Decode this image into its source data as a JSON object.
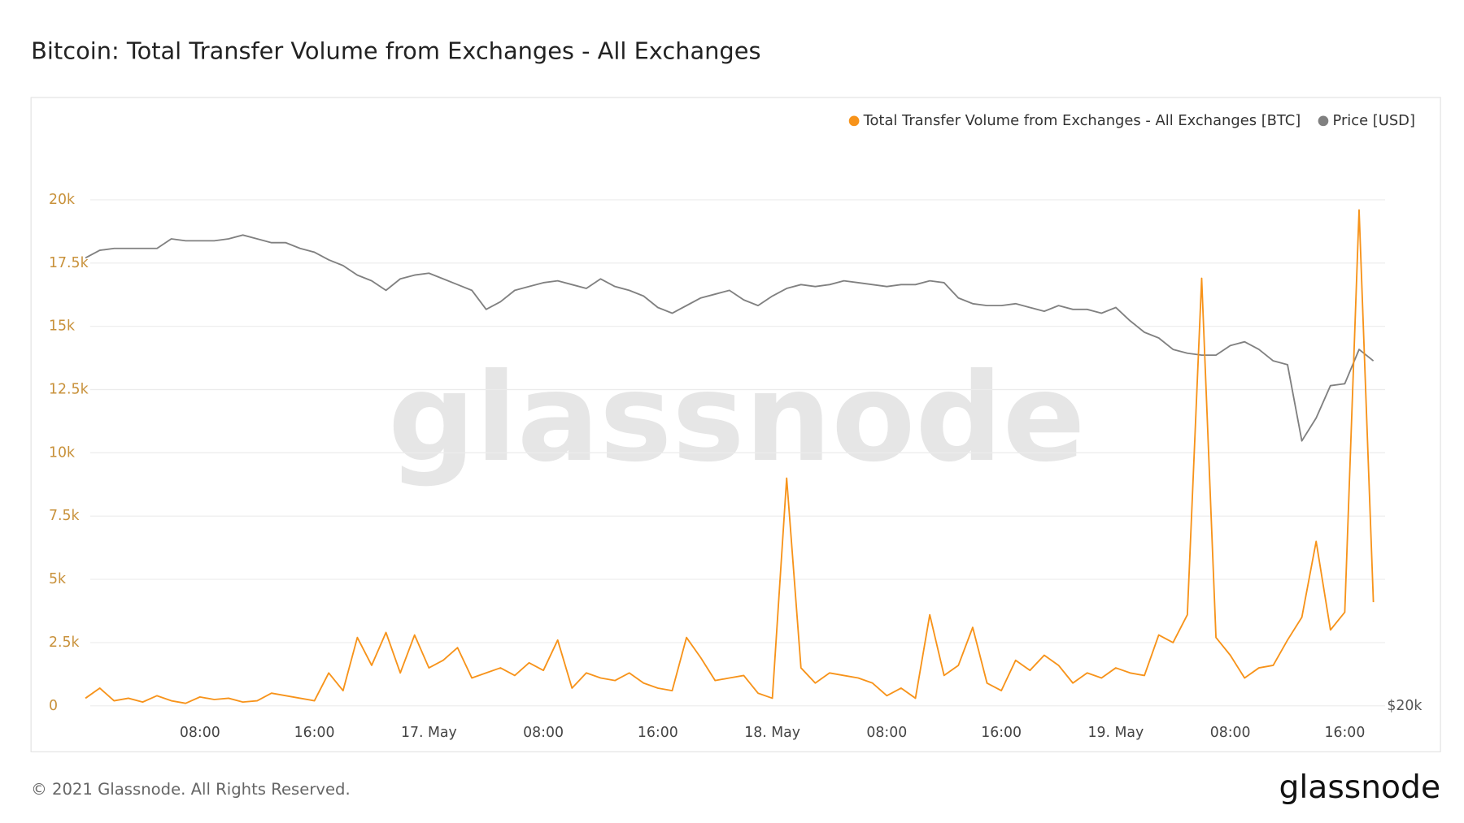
{
  "chart_data": {
    "type": "line",
    "title": "Bitcoin: Total Transfer Volume from Exchanges - All Exchanges",
    "watermark": "glassnode",
    "footer": "© 2021 Glassnode. All Rights Reserved.",
    "logo": "glassnode",
    "legend": "top-right",
    "grid": true,
    "categories": [
      null,
      null,
      null,
      null,
      null,
      null,
      null,
      null,
      "08:00",
      null,
      null,
      null,
      null,
      null,
      null,
      null,
      "16:00",
      null,
      null,
      null,
      null,
      null,
      null,
      null,
      "17. May",
      null,
      null,
      null,
      null,
      null,
      null,
      null,
      "08:00",
      null,
      null,
      null,
      null,
      null,
      null,
      null,
      "16:00",
      null,
      null,
      null,
      null,
      null,
      null,
      null,
      "18. May",
      null,
      null,
      null,
      null,
      null,
      null,
      null,
      "08:00",
      null,
      null,
      null,
      null,
      null,
      null,
      null,
      "16:00",
      null,
      null,
      null,
      null,
      null,
      null,
      null,
      "19. May",
      null,
      null,
      null,
      null,
      null,
      null,
      null,
      "08:00",
      null,
      null,
      null,
      null,
      null,
      null,
      null,
      "16:00",
      null,
      null
    ],
    "ylim": [
      0,
      22600
    ],
    "yticks": [
      0,
      {
        "value": 2500,
        "label": "2.5k"
      },
      {
        "value": 5000,
        "label": "5k"
      },
      {
        "value": 7500,
        "label": "7.5k"
      },
      {
        "value": 10000,
        "label": "10k"
      },
      {
        "value": 12500,
        "label": "12.5k"
      },
      {
        "value": 15000,
        "label": "15k"
      },
      {
        "value": 17500,
        "label": "17.5k"
      },
      {
        "value": 20000,
        "label": "20k"
      }
    ],
    "y2lim": [
      20000,
      50000
    ],
    "y2ticks": [
      {
        "value": 20000,
        "label": "$20k"
      }
    ],
    "series": [
      {
        "name": "Total Transfer Volume from Exchanges - All Exchanges [BTC]",
        "color": "#f7931a",
        "values": [
          300,
          700,
          200,
          300,
          150,
          400,
          200,
          100,
          350,
          250,
          300,
          150,
          200,
          500,
          400,
          300,
          200,
          1300,
          600,
          2700,
          1600,
          2900,
          1300,
          2800,
          1500,
          1800,
          2300,
          1100,
          1300,
          1500,
          1200,
          1700,
          1400,
          2600,
          700,
          1300,
          1100,
          1000,
          1300,
          900,
          700,
          600,
          2700,
          1900,
          1000,
          1100,
          1200,
          500,
          300,
          9000,
          1500,
          900,
          1300,
          1200,
          1100,
          900,
          400,
          700,
          300,
          3600,
          1200,
          1600,
          3100,
          900,
          600,
          1800,
          1400,
          2000,
          1600,
          900,
          1300,
          1100,
          1500,
          1300,
          1200,
          2800,
          2500,
          3600,
          16900,
          2700,
          2000,
          1100,
          1500,
          1600,
          2600,
          3500,
          6500,
          3000,
          3700,
          19600,
          4100
        ]
      },
      {
        "name": "Price [USD]",
        "color": "#808080",
        "axis": "y2",
        "values": [
          43500,
          43900,
          44000,
          44000,
          44000,
          44000,
          44500,
          44400,
          44400,
          44400,
          44500,
          44700,
          44500,
          44300,
          44300,
          44000,
          43800,
          43400,
          43100,
          42600,
          42300,
          41800,
          42400,
          42600,
          42700,
          42400,
          42100,
          41800,
          40800,
          41200,
          41800,
          42000,
          42200,
          42300,
          42100,
          41900,
          42400,
          42000,
          41800,
          41500,
          40900,
          40600,
          41000,
          41400,
          41600,
          41800,
          41300,
          41000,
          41500,
          41900,
          42100,
          42000,
          42100,
          42300,
          42200,
          42100,
          42000,
          42100,
          42100,
          42300,
          42200,
          41400,
          41100,
          41000,
          41000,
          41100,
          40900,
          40700,
          41000,
          40800,
          40800,
          40600,
          40900,
          40200,
          39600,
          39300,
          38700,
          38500,
          38400,
          38400,
          38900,
          39100,
          38700,
          38100,
          37900,
          33900,
          35100,
          36800,
          36900,
          38700,
          38100
        ]
      }
    ]
  }
}
